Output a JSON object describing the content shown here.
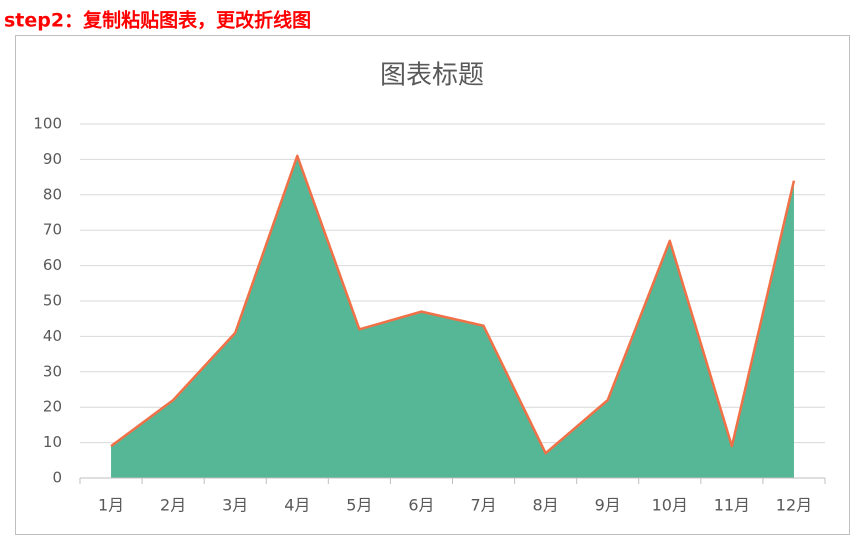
{
  "header": "step2：复制粘贴图表，更改折线图",
  "chart_data": {
    "type": "area",
    "title": "图表标题",
    "categories": [
      "1月",
      "2月",
      "3月",
      "4月",
      "5月",
      "6月",
      "7月",
      "8月",
      "9月",
      "10月",
      "11月",
      "12月"
    ],
    "values": [
      9,
      22,
      41,
      91,
      42,
      47,
      43,
      7,
      22,
      67,
      9,
      84
    ],
    "color": "#55b795",
    "line_color": "#f07148",
    "ylim": [
      0,
      100
    ],
    "yticks": [
      0,
      10,
      20,
      30,
      40,
      50,
      60,
      70,
      80,
      90,
      100
    ],
    "grid": true
  }
}
